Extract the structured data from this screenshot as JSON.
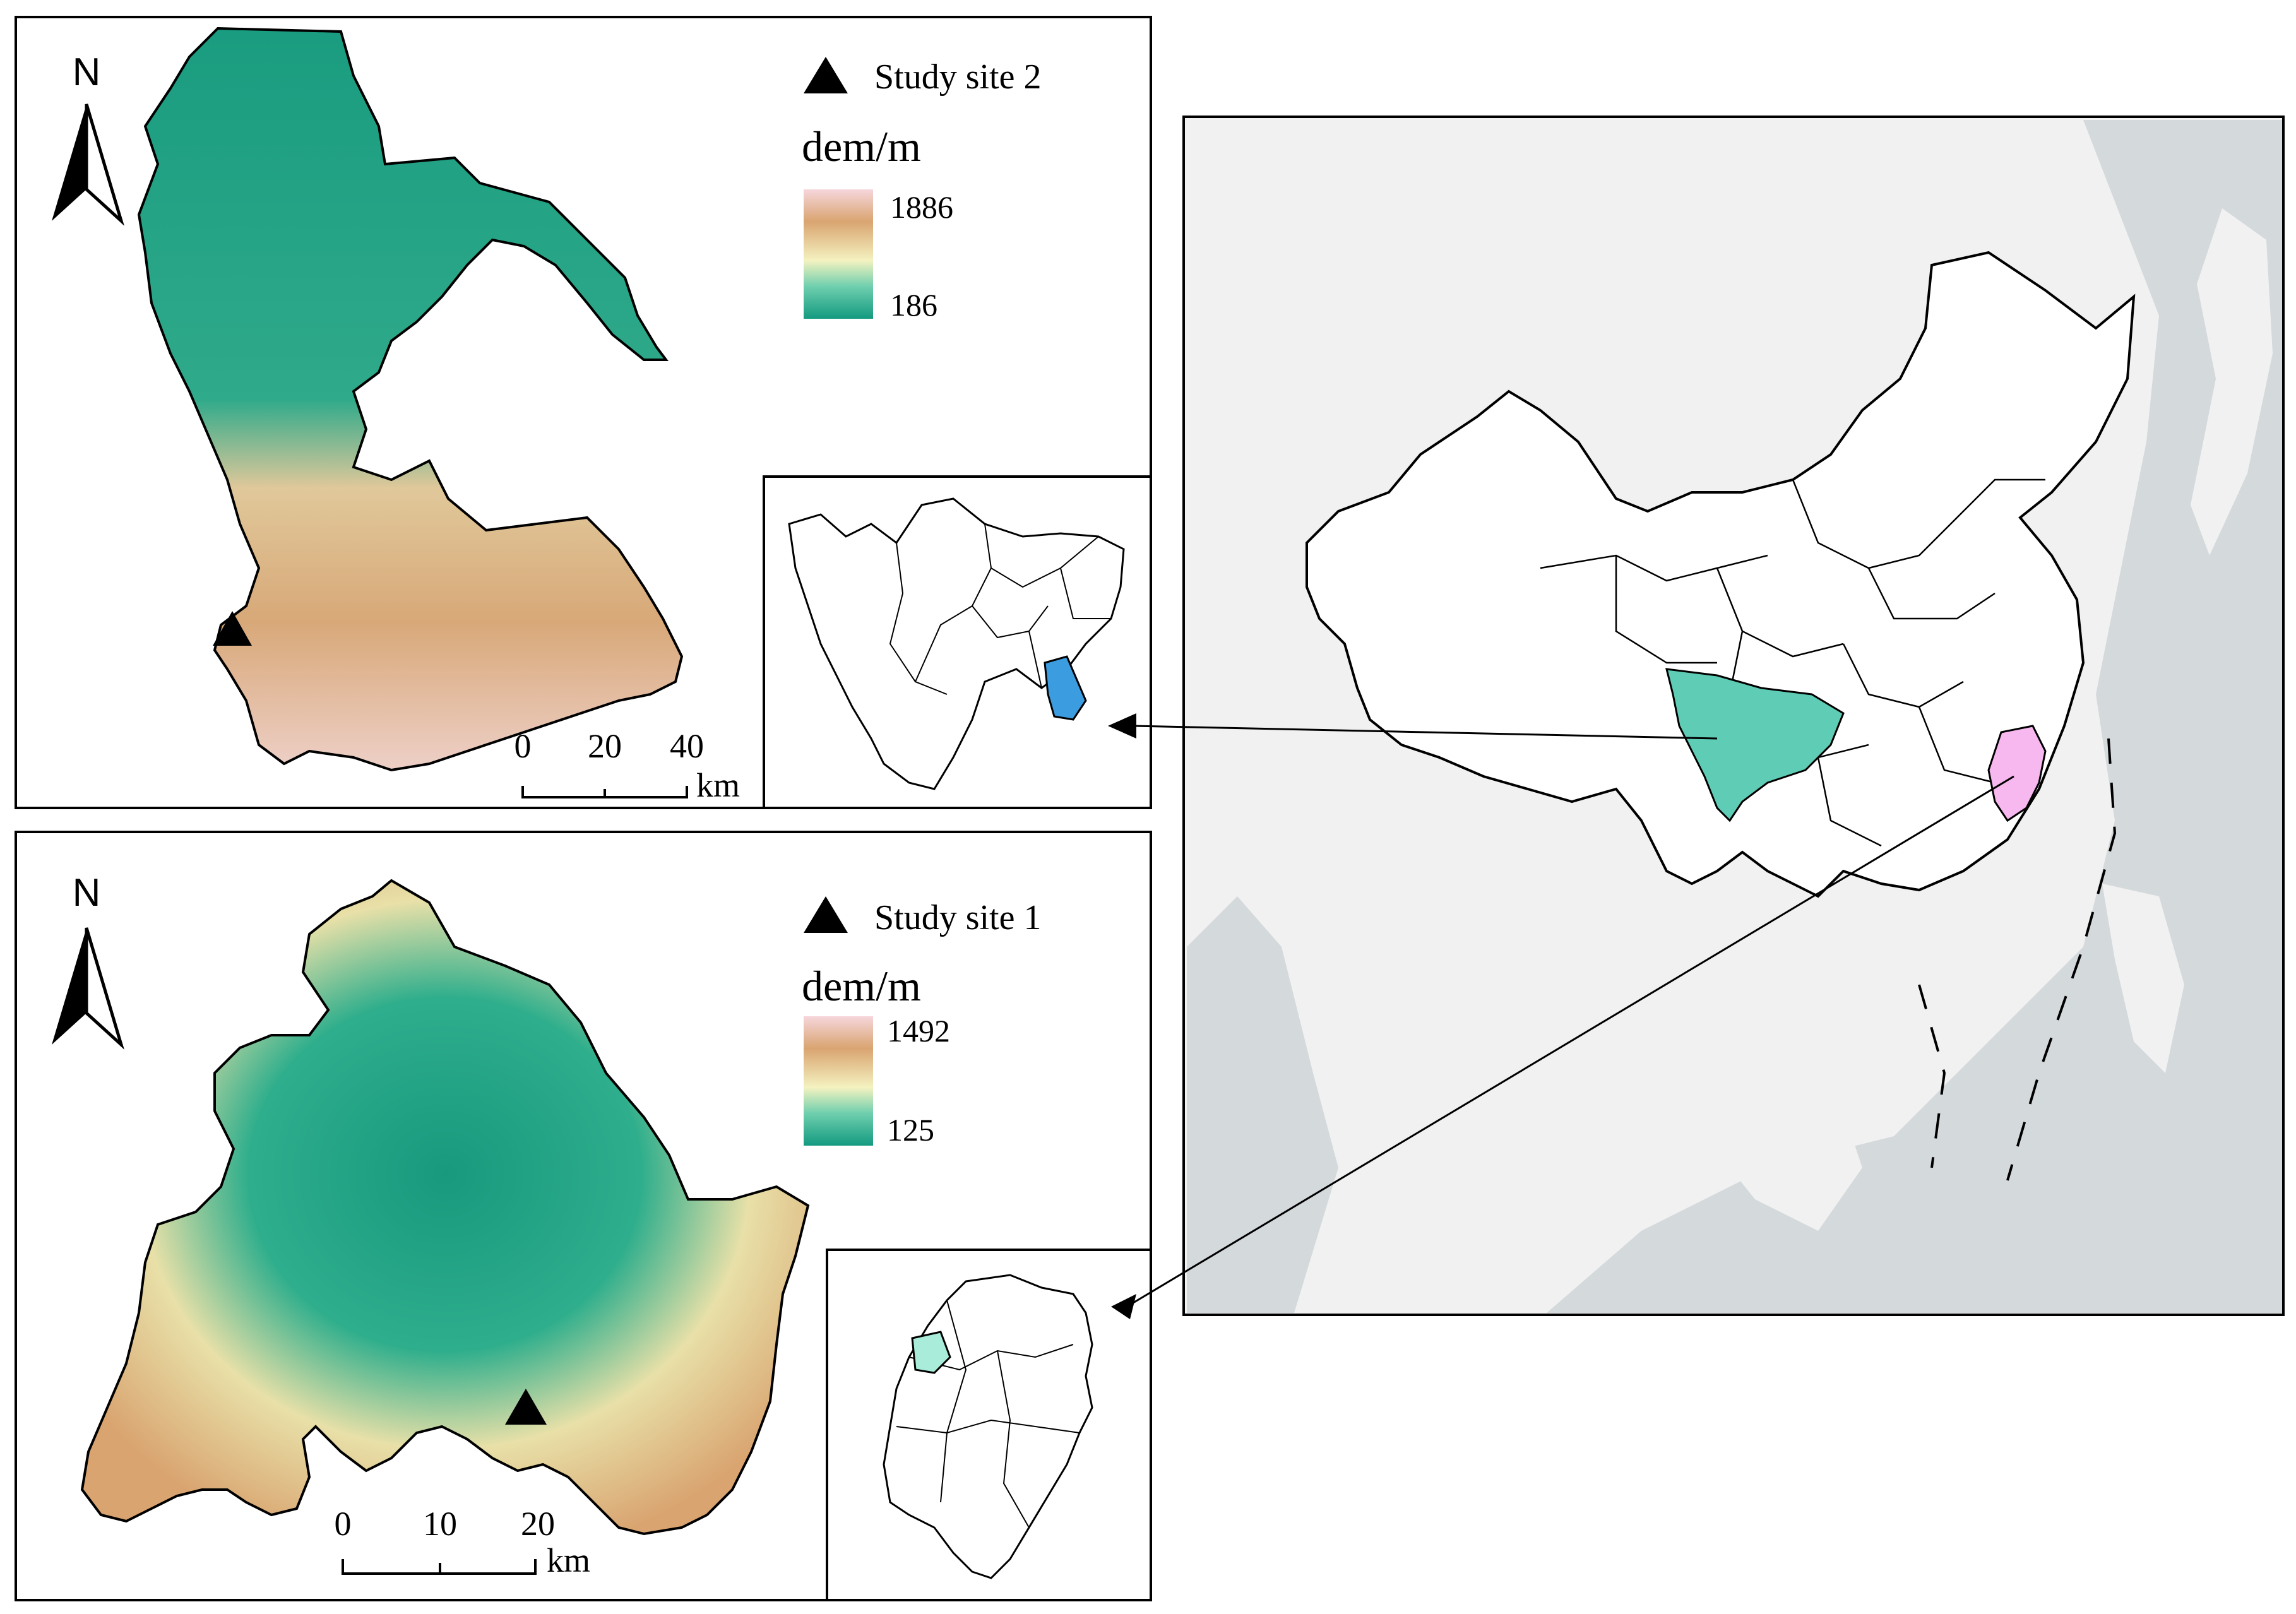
{
  "panel_top": {
    "north_label": "N",
    "legend_site": "Study site 2",
    "legend_title": "dem/m",
    "dem_max": "1886",
    "dem_min": "186",
    "scale_ticks": [
      "0",
      "20",
      "40"
    ],
    "scale_unit": "km"
  },
  "panel_bottom": {
    "north_label": "N",
    "legend_site": "Study site 1",
    "legend_title": "dem/m",
    "dem_max": "1492",
    "dem_min": "125",
    "scale_ticks": [
      "0",
      "10",
      "20"
    ],
    "scale_unit": "km"
  },
  "colors": {
    "dem_high": "#f3c6d0",
    "dem_mid_high": "#d9a470",
    "dem_mid": "#f4f2c0",
    "dem_mid_low": "#6fcfae",
    "dem_low": "#139a80",
    "sichuan_fill": "#5fcdb5",
    "site2_region_fill": "#3c9ce0",
    "fujian_fill": "#f7b8f0",
    "site1_region_fill": "#a8ecd9",
    "ocean": "#d4d9dc",
    "land": "#f1f1f1"
  }
}
